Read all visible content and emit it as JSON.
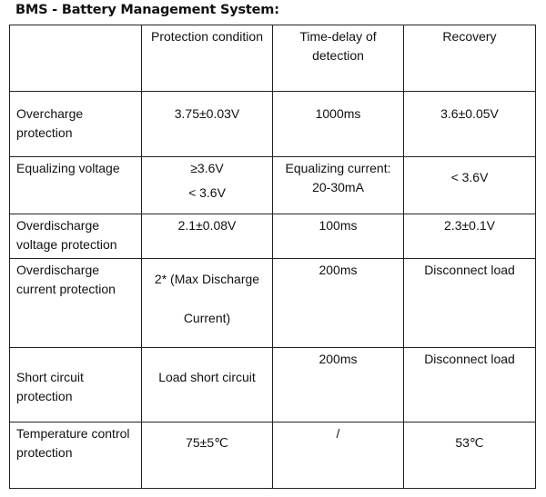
{
  "title": "BMS - Battery Management System:",
  "headers": [
    "",
    "Protection condition",
    "Time-delay of detection",
    "Recovery"
  ],
  "rows": [
    {
      "name": "Overcharge protection",
      "condition": "3.75±0.03V",
      "delay": "1000ms",
      "recovery": "3.6±0.05V"
    },
    {
      "name": "Equalizing voltage",
      "condition": "≥3.6V",
      "condition2": "< 3.6V",
      "delay": "Equalizing current: 20-30mA",
      "recovery": "< 3.6V"
    },
    {
      "name": "Overdischarge voltage protection",
      "condition": "2.1±0.08V",
      "delay": "100ms",
      "recovery": "2.3±0.1V"
    },
    {
      "name": "Overdischarge current protection",
      "condition": "2* (Max Discharge",
      "condition2": "Current)",
      "delay": "200ms",
      "recovery": "Disconnect load"
    },
    {
      "name": "Short circuit protection",
      "condition": "Load short circuit",
      "delay": "200ms",
      "recovery": "Disconnect load"
    },
    {
      "name": "Temperature control protection",
      "condition": "75±5℃",
      "delay": "/",
      "recovery": "53℃"
    }
  ]
}
